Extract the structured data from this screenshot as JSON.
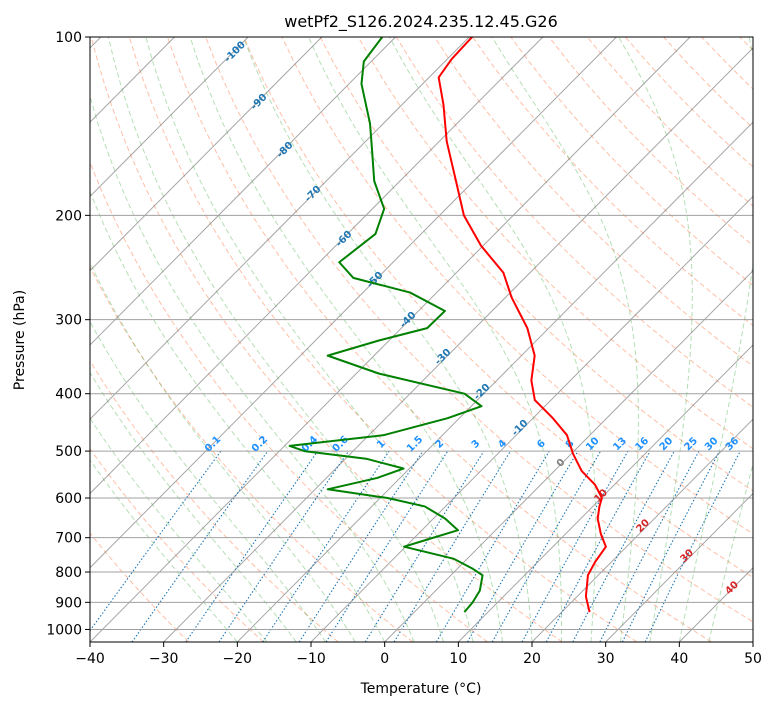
{
  "chart_data": {
    "type": "line",
    "title": "wetPf2_S126.2024.235.12.45.G26",
    "xlabel": "Temperature (°C)",
    "ylabel": "Pressure (hPa)",
    "xlim": [
      -40,
      50
    ],
    "ylim": [
      1050,
      100
    ],
    "y_scale": "log",
    "x_ticks": [
      -40,
      -30,
      -20,
      -10,
      0,
      10,
      20,
      30,
      40,
      50
    ],
    "y_ticks": [
      1000,
      900,
      800,
      700,
      600,
      500,
      400,
      300,
      200,
      100
    ],
    "skew": true,
    "grid": true,
    "series": [
      {
        "color": "#ff0000",
        "points": [
          {
            "p": 935,
            "t": 23.8
          },
          {
            "p": 880,
            "t": 21.2
          },
          {
            "p": 810,
            "t": 18.6
          },
          {
            "p": 770,
            "t": 17.8
          },
          {
            "p": 725,
            "t": 17.2
          },
          {
            "p": 690,
            "t": 14.8
          },
          {
            "p": 650,
            "t": 12.3
          },
          {
            "p": 620,
            "t": 10.9
          },
          {
            "p": 600,
            "t": 10.1
          },
          {
            "p": 570,
            "t": 7.4
          },
          {
            "p": 540,
            "t": 3.7
          },
          {
            "p": 505,
            "t": 0.2
          },
          {
            "p": 470,
            "t": -3.1
          },
          {
            "p": 440,
            "t": -7.3
          },
          {
            "p": 410,
            "t": -12.2
          },
          {
            "p": 380,
            "t": -15.3
          },
          {
            "p": 345,
            "t": -18.2
          },
          {
            "p": 310,
            "t": -22.9
          },
          {
            "p": 275,
            "t": -29.2
          },
          {
            "p": 250,
            "t": -33.6
          },
          {
            "p": 225,
            "t": -40.3
          },
          {
            "p": 200,
            "t": -46.7
          },
          {
            "p": 175,
            "t": -52.4
          },
          {
            "p": 150,
            "t": -59.0
          },
          {
            "p": 130,
            "t": -64.4
          },
          {
            "p": 117,
            "t": -68.7
          },
          {
            "p": 109,
            "t": -69.4
          },
          {
            "p": 100,
            "t": -69.6
          }
        ]
      },
      {
        "color": "#008000",
        "points": [
          {
            "p": 935,
            "t": 6.8
          },
          {
            "p": 900,
            "t": 6.6
          },
          {
            "p": 860,
            "t": 6.0
          },
          {
            "p": 810,
            "t": 4.3
          },
          {
            "p": 790,
            "t": 2.1
          },
          {
            "p": 760,
            "t": -1.8
          },
          {
            "p": 725,
            "t": -10.2
          },
          {
            "p": 705,
            "t": -8.0
          },
          {
            "p": 680,
            "t": -5.1
          },
          {
            "p": 650,
            "t": -8.4
          },
          {
            "p": 620,
            "t": -12.8
          },
          {
            "p": 600,
            "t": -19.0
          },
          {
            "p": 580,
            "t": -28.3
          },
          {
            "p": 555,
            "t": -23.1
          },
          {
            "p": 535,
            "t": -20.8
          },
          {
            "p": 515,
            "t": -27.2
          },
          {
            "p": 500,
            "t": -36.6
          },
          {
            "p": 490,
            "t": -39.3
          },
          {
            "p": 470,
            "t": -28.0
          },
          {
            "p": 440,
            "t": -21.6
          },
          {
            "p": 420,
            "t": -18.6
          },
          {
            "p": 400,
            "t": -22.6
          },
          {
            "p": 370,
            "t": -36.9
          },
          {
            "p": 345,
            "t": -46.3
          },
          {
            "p": 325,
            "t": -41.3
          },
          {
            "p": 310,
            "t": -36.5
          },
          {
            "p": 290,
            "t": -36.4
          },
          {
            "p": 270,
            "t": -43.6
          },
          {
            "p": 255,
            "t": -53.3
          },
          {
            "p": 240,
            "t": -57.3
          },
          {
            "p": 215,
            "t": -56.2
          },
          {
            "p": 195,
            "t": -58.4
          },
          {
            "p": 175,
            "t": -63.5
          },
          {
            "p": 155,
            "t": -68.0
          },
          {
            "p": 140,
            "t": -71.8
          },
          {
            "p": 120,
            "t": -78.3
          },
          {
            "p": 110,
            "t": -81.0
          },
          {
            "p": 100,
            "t": -81.8
          }
        ]
      }
    ],
    "isotherm_labels": [
      "-100",
      "-90",
      "-80",
      "-70",
      "-60",
      "-50",
      "-40",
      "-30",
      "-20",
      "-10"
    ],
    "mixing_ratio_labels": [
      "0.1",
      "0.2",
      "0.4",
      "0.6",
      "1",
      "1.5",
      "2",
      "3",
      "4",
      "6",
      "8",
      "10",
      "13",
      "16",
      "20",
      "25",
      "30",
      "36"
    ],
    "moist_adiabat_labels": [
      "0",
      "10",
      "20",
      "30",
      "40"
    ],
    "colors": {
      "temperature": "#ff0000",
      "dewpoint": "#008000",
      "isotherm": "#808080",
      "dry_adiabat": "#ff7f50",
      "moist_adiabat": "#2ca02c",
      "mixing_ratio": "#1f77b4",
      "isotherm_label": "#1f77b4",
      "mixing_label": "#1e90ff",
      "moist_label": "#d62728",
      "zero_label": "#808080"
    }
  }
}
